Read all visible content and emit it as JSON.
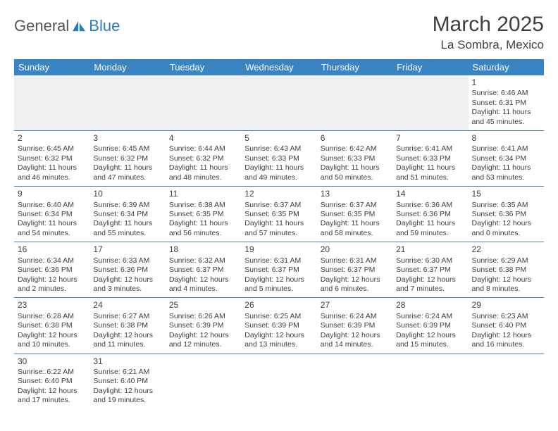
{
  "logo": {
    "part1": "General",
    "part2": "Blue"
  },
  "title": "March 2025",
  "location": "La Sombra, Mexico",
  "header_bg": "#3b84c4",
  "header_fg": "#ffffff",
  "rule_color": "#3b84c4",
  "days": [
    "Sunday",
    "Monday",
    "Tuesday",
    "Wednesday",
    "Thursday",
    "Friday",
    "Saturday"
  ],
  "labels": {
    "sunrise": "Sunrise:",
    "sunset": "Sunset:",
    "daylight": "Daylight:"
  },
  "weeks": [
    [
      null,
      null,
      null,
      null,
      null,
      null,
      {
        "n": "1",
        "sr": "6:46 AM",
        "ss": "6:31 PM",
        "dl": "11 hours and 45 minutes."
      }
    ],
    [
      {
        "n": "2",
        "sr": "6:45 AM",
        "ss": "6:32 PM",
        "dl": "11 hours and 46 minutes."
      },
      {
        "n": "3",
        "sr": "6:45 AM",
        "ss": "6:32 PM",
        "dl": "11 hours and 47 minutes."
      },
      {
        "n": "4",
        "sr": "6:44 AM",
        "ss": "6:32 PM",
        "dl": "11 hours and 48 minutes."
      },
      {
        "n": "5",
        "sr": "6:43 AM",
        "ss": "6:33 PM",
        "dl": "11 hours and 49 minutes."
      },
      {
        "n": "6",
        "sr": "6:42 AM",
        "ss": "6:33 PM",
        "dl": "11 hours and 50 minutes."
      },
      {
        "n": "7",
        "sr": "6:41 AM",
        "ss": "6:33 PM",
        "dl": "11 hours and 51 minutes."
      },
      {
        "n": "8",
        "sr": "6:41 AM",
        "ss": "6:34 PM",
        "dl": "11 hours and 53 minutes."
      }
    ],
    [
      {
        "n": "9",
        "sr": "6:40 AM",
        "ss": "6:34 PM",
        "dl": "11 hours and 54 minutes."
      },
      {
        "n": "10",
        "sr": "6:39 AM",
        "ss": "6:34 PM",
        "dl": "11 hours and 55 minutes."
      },
      {
        "n": "11",
        "sr": "6:38 AM",
        "ss": "6:35 PM",
        "dl": "11 hours and 56 minutes."
      },
      {
        "n": "12",
        "sr": "6:37 AM",
        "ss": "6:35 PM",
        "dl": "11 hours and 57 minutes."
      },
      {
        "n": "13",
        "sr": "6:37 AM",
        "ss": "6:35 PM",
        "dl": "11 hours and 58 minutes."
      },
      {
        "n": "14",
        "sr": "6:36 AM",
        "ss": "6:36 PM",
        "dl": "11 hours and 59 minutes."
      },
      {
        "n": "15",
        "sr": "6:35 AM",
        "ss": "6:36 PM",
        "dl": "12 hours and 0 minutes."
      }
    ],
    [
      {
        "n": "16",
        "sr": "6:34 AM",
        "ss": "6:36 PM",
        "dl": "12 hours and 2 minutes."
      },
      {
        "n": "17",
        "sr": "6:33 AM",
        "ss": "6:36 PM",
        "dl": "12 hours and 3 minutes."
      },
      {
        "n": "18",
        "sr": "6:32 AM",
        "ss": "6:37 PM",
        "dl": "12 hours and 4 minutes."
      },
      {
        "n": "19",
        "sr": "6:31 AM",
        "ss": "6:37 PM",
        "dl": "12 hours and 5 minutes."
      },
      {
        "n": "20",
        "sr": "6:31 AM",
        "ss": "6:37 PM",
        "dl": "12 hours and 6 minutes."
      },
      {
        "n": "21",
        "sr": "6:30 AM",
        "ss": "6:37 PM",
        "dl": "12 hours and 7 minutes."
      },
      {
        "n": "22",
        "sr": "6:29 AM",
        "ss": "6:38 PM",
        "dl": "12 hours and 8 minutes."
      }
    ],
    [
      {
        "n": "23",
        "sr": "6:28 AM",
        "ss": "6:38 PM",
        "dl": "12 hours and 10 minutes."
      },
      {
        "n": "24",
        "sr": "6:27 AM",
        "ss": "6:38 PM",
        "dl": "12 hours and 11 minutes."
      },
      {
        "n": "25",
        "sr": "6:26 AM",
        "ss": "6:39 PM",
        "dl": "12 hours and 12 minutes."
      },
      {
        "n": "26",
        "sr": "6:25 AM",
        "ss": "6:39 PM",
        "dl": "12 hours and 13 minutes."
      },
      {
        "n": "27",
        "sr": "6:24 AM",
        "ss": "6:39 PM",
        "dl": "12 hours and 14 minutes."
      },
      {
        "n": "28",
        "sr": "6:24 AM",
        "ss": "6:39 PM",
        "dl": "12 hours and 15 minutes."
      },
      {
        "n": "29",
        "sr": "6:23 AM",
        "ss": "6:40 PM",
        "dl": "12 hours and 16 minutes."
      }
    ],
    [
      {
        "n": "30",
        "sr": "6:22 AM",
        "ss": "6:40 PM",
        "dl": "12 hours and 17 minutes."
      },
      {
        "n": "31",
        "sr": "6:21 AM",
        "ss": "6:40 PM",
        "dl": "12 hours and 19 minutes."
      },
      null,
      null,
      null,
      null,
      null
    ]
  ]
}
